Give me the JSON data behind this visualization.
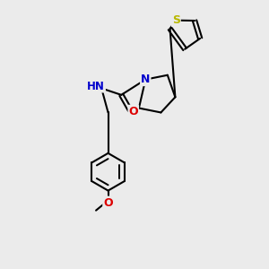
{
  "background_color": "#ebebeb",
  "atom_colors": {
    "S": "#b8b800",
    "N": "#0000cc",
    "O": "#dd0000",
    "C": "#000000",
    "H": "#6a9faa"
  },
  "bond_color": "#000000",
  "bond_width": 1.5,
  "figsize": [
    3.0,
    3.0
  ],
  "dpi": 100
}
